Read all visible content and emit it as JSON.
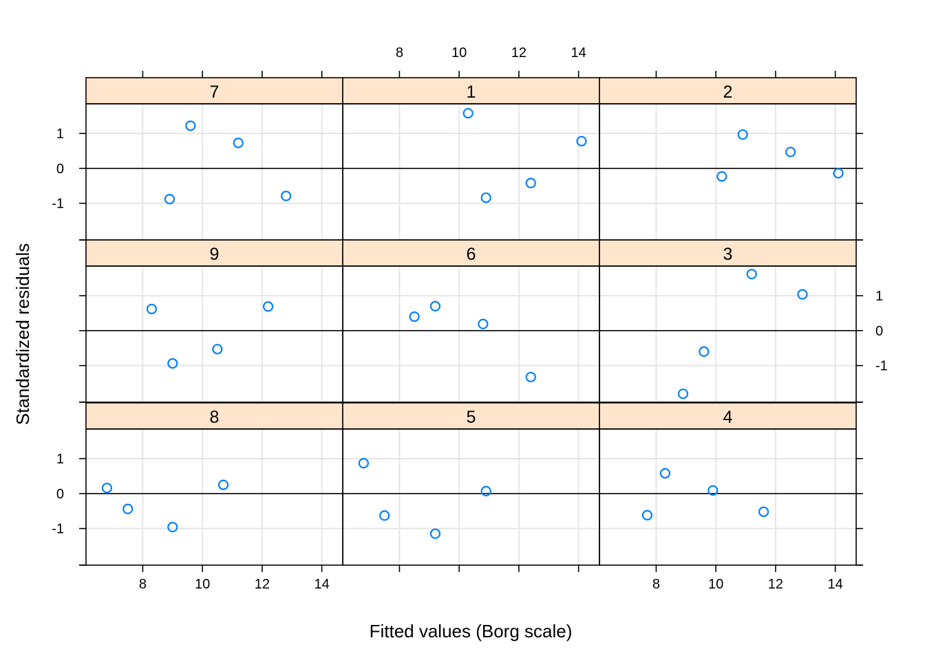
{
  "chart_data": {
    "type": "scatter",
    "xlabel": "Fitted values (Borg scale)",
    "ylabel": "Standardized residuals",
    "xlim": [
      6.1,
      14.7
    ],
    "ylim": [
      -2.05,
      1.85
    ],
    "x_ticks": [
      8,
      10,
      12,
      14
    ],
    "y_ticks": [
      -1,
      0,
      1
    ],
    "reference_line_y": 0,
    "grid": true,
    "colors": {
      "points": "#0080ff",
      "strip_bg": "#ffe5cc",
      "grid": "#e6e6e6",
      "frame": "#000000"
    },
    "panels": [
      {
        "label": "7",
        "x": [
          9.6,
          11.2,
          8.9,
          12.8
        ],
        "y": [
          1.22,
          0.73,
          -0.88,
          -0.79
        ]
      },
      {
        "label": "1",
        "x": [
          10.3,
          14.1,
          10.9,
          12.4
        ],
        "y": [
          1.58,
          0.78,
          -0.84,
          -0.42
        ]
      },
      {
        "label": "2",
        "x": [
          10.9,
          12.5,
          10.2,
          14.1
        ],
        "y": [
          0.97,
          0.47,
          -0.23,
          -0.14
        ]
      },
      {
        "label": "9",
        "x": [
          8.3,
          12.2,
          9.0,
          10.5
        ],
        "y": [
          0.62,
          0.69,
          -0.94,
          -0.53
        ]
      },
      {
        "label": "6",
        "x": [
          8.5,
          9.2,
          10.8,
          12.4
        ],
        "y": [
          0.4,
          0.7,
          0.19,
          -1.33
        ]
      },
      {
        "label": "3",
        "x": [
          11.2,
          12.9,
          9.6,
          8.9
        ],
        "y": [
          1.62,
          1.04,
          -0.6,
          -1.81
        ]
      },
      {
        "label": "8",
        "x": [
          6.8,
          7.5,
          9.0,
          10.7
        ],
        "y": [
          0.16,
          -0.44,
          -0.96,
          0.25
        ]
      },
      {
        "label": "5",
        "x": [
          6.8,
          7.5,
          9.2,
          10.9
        ],
        "y": [
          0.87,
          -0.63,
          -1.15,
          0.07
        ]
      },
      {
        "label": "4",
        "x": [
          7.7,
          8.3,
          9.9,
          11.6
        ],
        "y": [
          -0.62,
          0.58,
          0.09,
          -0.52
        ]
      }
    ]
  }
}
